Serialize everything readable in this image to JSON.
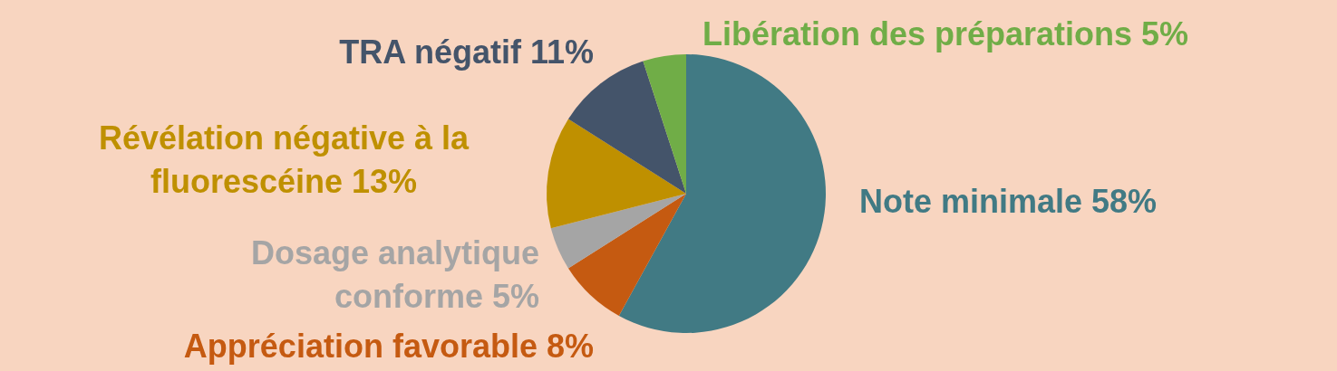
{
  "chart_data": {
    "type": "pie",
    "categories": [
      "Note minimale",
      "Appréciation favorable",
      "Dosage analytique conforme",
      "Révélation négative à la fluorescéine",
      "TRA négatif",
      "Libération des préparations"
    ],
    "values": [
      58,
      8,
      5,
      13,
      11,
      5
    ],
    "value_labels": [
      "58%",
      "8%",
      "5%",
      "13%",
      "11%",
      "5%"
    ],
    "colors": [
      "#417a84",
      "#c55a11",
      "#a5a5a5",
      "#bf9000",
      "#44546a",
      "#70ad47"
    ]
  }
}
